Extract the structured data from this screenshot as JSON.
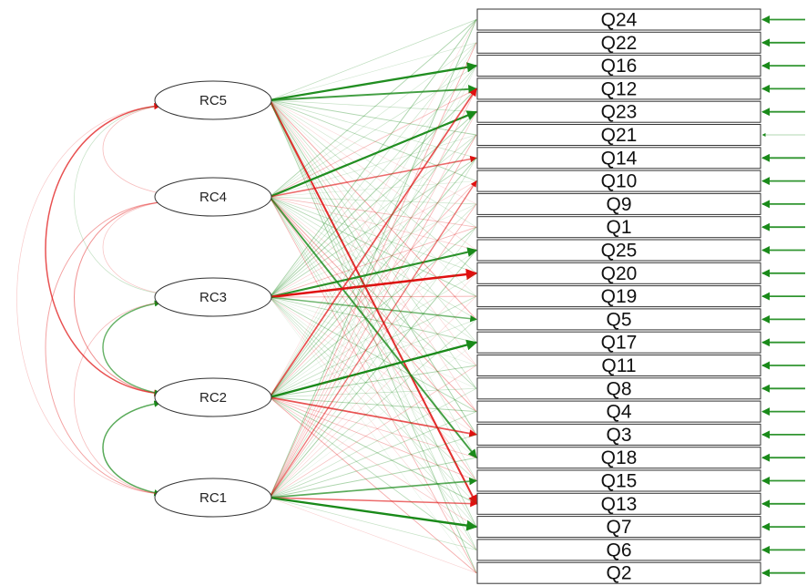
{
  "factors": [
    "RC5",
    "RC4",
    "RC3",
    "RC2",
    "RC1"
  ],
  "items": [
    "Q24",
    "Q22",
    "Q16",
    "Q12",
    "Q23",
    "Q21",
    "Q14",
    "Q10",
    "Q9",
    "Q1",
    "Q25",
    "Q20",
    "Q19",
    "Q5",
    "Q17",
    "Q11",
    "Q8",
    "Q4",
    "Q3",
    "Q18",
    "Q15",
    "Q13",
    "Q7",
    "Q6",
    "Q2"
  ],
  "colors": {
    "positive": "#1a8a1a",
    "negative": "#e01010",
    "outline": "#333333"
  },
  "strong_loadings": [
    {
      "factor": "RC5",
      "item": "Q16",
      "sign": "positive",
      "strength": 0.85
    },
    {
      "factor": "RC5",
      "item": "Q12",
      "sign": "positive",
      "strength": 0.7
    },
    {
      "factor": "RC5",
      "item": "Q13",
      "sign": "negative",
      "strength": 0.75
    },
    {
      "factor": "RC4",
      "item": "Q23",
      "sign": "positive",
      "strength": 0.85
    },
    {
      "factor": "RC4",
      "item": "Q14",
      "sign": "negative",
      "strength": 0.5
    },
    {
      "factor": "RC4",
      "item": "Q18",
      "sign": "positive",
      "strength": 0.7
    },
    {
      "factor": "RC3",
      "item": "Q20",
      "sign": "negative",
      "strength": 0.95
    },
    {
      "factor": "RC3",
      "item": "Q25",
      "sign": "positive",
      "strength": 0.8
    },
    {
      "factor": "RC3",
      "item": "Q5",
      "sign": "positive",
      "strength": 0.5
    },
    {
      "factor": "RC2",
      "item": "Q17",
      "sign": "positive",
      "strength": 0.9
    },
    {
      "factor": "RC2",
      "item": "Q3",
      "sign": "negative",
      "strength": 0.6
    },
    {
      "factor": "RC2",
      "item": "Q12",
      "sign": "negative",
      "strength": 0.6
    },
    {
      "factor": "RC1",
      "item": "Q7",
      "sign": "positive",
      "strength": 0.9
    },
    {
      "factor": "RC1",
      "item": "Q15",
      "sign": "positive",
      "strength": 0.6
    },
    {
      "factor": "RC1",
      "item": "Q13",
      "sign": "negative",
      "strength": 0.5
    },
    {
      "factor": "RC1",
      "item": "Q10",
      "sign": "negative",
      "strength": 0.45
    }
  ],
  "factor_covariances": [
    {
      "a": "RC5",
      "b": "RC2",
      "sign": "negative",
      "strength": 0.55
    },
    {
      "a": "RC4",
      "b": "RC2",
      "sign": "negative",
      "strength": 0.3
    },
    {
      "a": "RC3",
      "b": "RC2",
      "sign": "positive",
      "strength": 0.5
    },
    {
      "a": "RC2",
      "b": "RC1",
      "sign": "positive",
      "strength": 0.55
    },
    {
      "a": "RC4",
      "b": "RC1",
      "sign": "negative",
      "strength": 0.25
    },
    {
      "a": "RC5",
      "b": "RC4",
      "sign": "negative",
      "strength": 0.15
    },
    {
      "a": "RC5",
      "b": "RC3",
      "sign": "positive",
      "strength": 0.12
    },
    {
      "a": "RC3",
      "b": "RC1",
      "sign": "negative",
      "strength": 0.15
    },
    {
      "a": "RC5",
      "b": "RC1",
      "sign": "negative",
      "strength": 0.1
    },
    {
      "a": "RC4",
      "b": "RC3",
      "sign": "negative",
      "strength": 0.12
    }
  ]
}
